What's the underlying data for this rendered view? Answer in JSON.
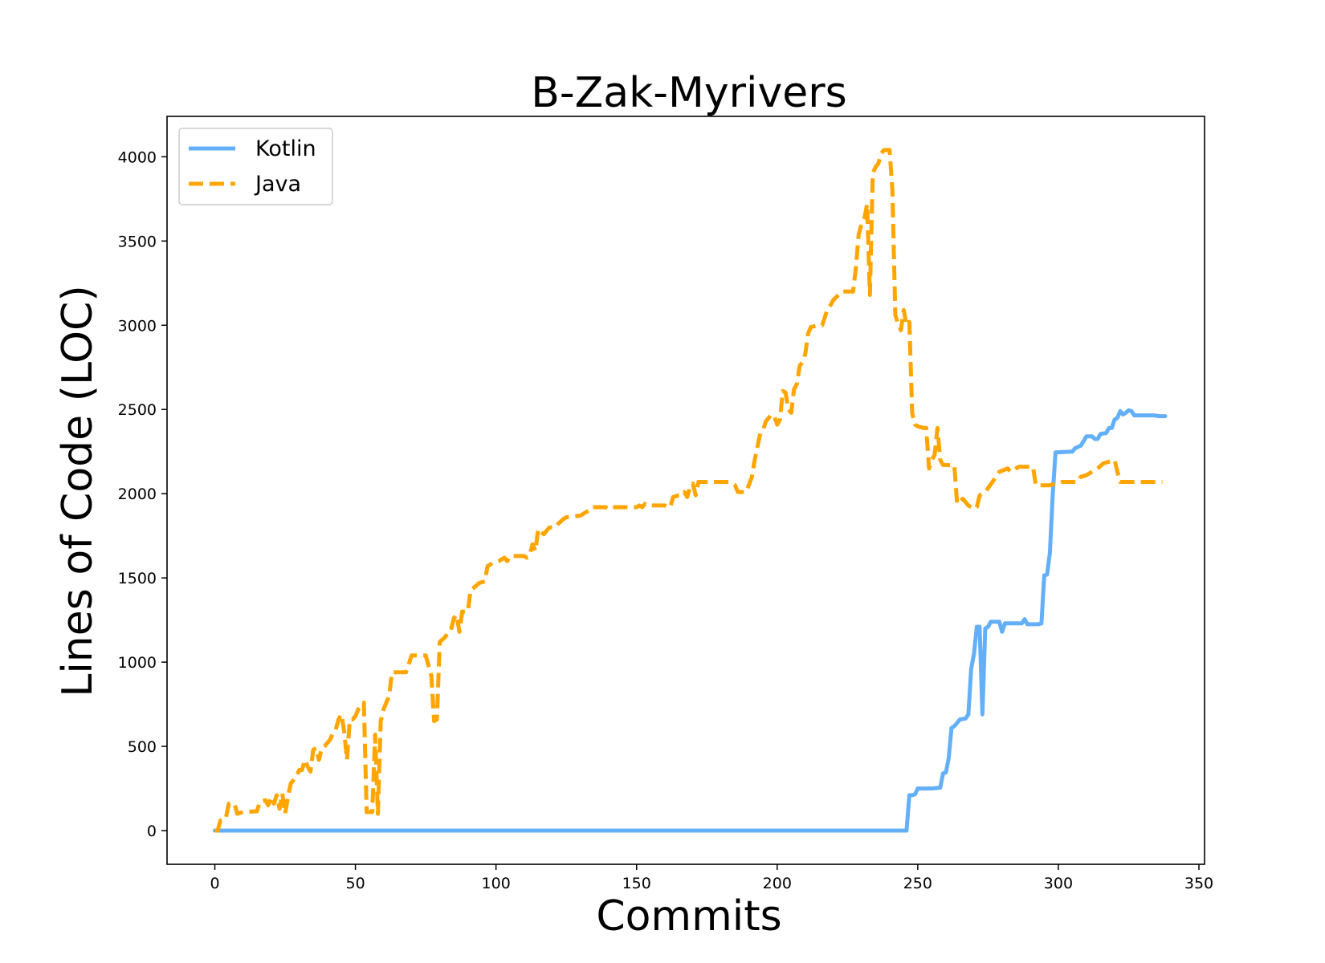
{
  "chart_data": {
    "type": "line",
    "title": "B-Zak-Myrivers",
    "xlabel": "Commits",
    "ylabel": "Lines of Code (LOC)",
    "xlim": [
      -17,
      352
    ],
    "ylim": [
      -200,
      4240
    ],
    "x_ticks": [
      0,
      50,
      100,
      150,
      200,
      250,
      300,
      350
    ],
    "y_ticks": [
      0,
      500,
      1000,
      1500,
      2000,
      2500,
      3000,
      3500,
      4000
    ],
    "grid": false,
    "legend_position": "top-left",
    "series": [
      {
        "name": "Kotlin",
        "color": "#64b0f8",
        "line_style": "solid",
        "points": [
          [
            0,
            0
          ],
          [
            246,
            0
          ],
          [
            247,
            210
          ],
          [
            248,
            210
          ],
          [
            249,
            215
          ],
          [
            250,
            250
          ],
          [
            255,
            250
          ],
          [
            258,
            255
          ],
          [
            259,
            340
          ],
          [
            260,
            345
          ],
          [
            261,
            430
          ],
          [
            262,
            610
          ],
          [
            263,
            620
          ],
          [
            264,
            640
          ],
          [
            265,
            660
          ],
          [
            267,
            665
          ],
          [
            268,
            690
          ],
          [
            269,
            960
          ],
          [
            270,
            1050
          ],
          [
            271,
            1210
          ],
          [
            272,
            1210
          ],
          [
            273,
            690
          ],
          [
            274,
            1200
          ],
          [
            275,
            1210
          ],
          [
            276,
            1240
          ],
          [
            279,
            1240
          ],
          [
            280,
            1180
          ],
          [
            281,
            1230
          ],
          [
            287,
            1230
          ],
          [
            288,
            1255
          ],
          [
            289,
            1225
          ],
          [
            293,
            1225
          ],
          [
            294,
            1230
          ],
          [
            295,
            1515
          ],
          [
            296,
            1520
          ],
          [
            297,
            1650
          ],
          [
            298,
            1990
          ],
          [
            299,
            2245
          ],
          [
            305,
            2250
          ],
          [
            306,
            2270
          ],
          [
            308,
            2285
          ],
          [
            310,
            2340
          ],
          [
            312,
            2340
          ],
          [
            313,
            2325
          ],
          [
            314,
            2325
          ],
          [
            315,
            2355
          ],
          [
            317,
            2360
          ],
          [
            318,
            2390
          ],
          [
            319,
            2390
          ],
          [
            320,
            2440
          ],
          [
            321,
            2450
          ],
          [
            322,
            2490
          ],
          [
            323,
            2470
          ],
          [
            324,
            2480
          ],
          [
            325,
            2495
          ],
          [
            326,
            2490
          ],
          [
            327,
            2465
          ],
          [
            334,
            2465
          ],
          [
            336,
            2460
          ],
          [
            338,
            2460
          ]
        ]
      },
      {
        "name": "Java",
        "color": "#ffa500",
        "line_style": "dashed",
        "points": [
          [
            0,
            0
          ],
          [
            1,
            0
          ],
          [
            2,
            60
          ],
          [
            3,
            60
          ],
          [
            4,
            80
          ],
          [
            5,
            160
          ],
          [
            7,
            160
          ],
          [
            8,
            100
          ],
          [
            10,
            110
          ],
          [
            15,
            115
          ],
          [
            16,
            170
          ],
          [
            18,
            180
          ],
          [
            19,
            150
          ],
          [
            20,
            200
          ],
          [
            21,
            160
          ],
          [
            22,
            210
          ],
          [
            23,
            130
          ],
          [
            24,
            220
          ],
          [
            25,
            100
          ],
          [
            26,
            200
          ],
          [
            27,
            280
          ],
          [
            28,
            300
          ],
          [
            29,
            320
          ],
          [
            30,
            360
          ],
          [
            31,
            360
          ],
          [
            32,
            420
          ],
          [
            33,
            380
          ],
          [
            34,
            350
          ],
          [
            35,
            480
          ],
          [
            36,
            490
          ],
          [
            37,
            420
          ],
          [
            38,
            490
          ],
          [
            39,
            500
          ],
          [
            40,
            520
          ],
          [
            41,
            540
          ],
          [
            42,
            580
          ],
          [
            43,
            600
          ],
          [
            44,
            660
          ],
          [
            45,
            690
          ],
          [
            46,
            590
          ],
          [
            47,
            420
          ],
          [
            48,
            660
          ],
          [
            49,
            660
          ],
          [
            50,
            680
          ],
          [
            51,
            720
          ],
          [
            52,
            740
          ],
          [
            53,
            760
          ],
          [
            54,
            110
          ],
          [
            56,
            110
          ],
          [
            57,
            570
          ],
          [
            58,
            100
          ],
          [
            59,
            650
          ],
          [
            60,
            720
          ],
          [
            61,
            760
          ],
          [
            62,
            800
          ],
          [
            63,
            940
          ],
          [
            68,
            940
          ],
          [
            69,
            990
          ],
          [
            70,
            1040
          ],
          [
            75,
            1040
          ],
          [
            77,
            920
          ],
          [
            78,
            650
          ],
          [
            79,
            660
          ],
          [
            80,
            1120
          ],
          [
            82,
            1150
          ],
          [
            83,
            1180
          ],
          [
            84,
            1190
          ],
          [
            85,
            1260
          ],
          [
            86,
            1280
          ],
          [
            87,
            1180
          ],
          [
            88,
            1300
          ],
          [
            90,
            1300
          ],
          [
            91,
            1430
          ],
          [
            92,
            1440
          ],
          [
            94,
            1470
          ],
          [
            96,
            1480
          ],
          [
            97,
            1570
          ],
          [
            98,
            1580
          ],
          [
            99,
            1590
          ],
          [
            101,
            1600
          ],
          [
            103,
            1620
          ],
          [
            104,
            1600
          ],
          [
            105,
            1630
          ],
          [
            110,
            1630
          ],
          [
            111,
            1620
          ],
          [
            112,
            1640
          ],
          [
            113,
            1700
          ],
          [
            114,
            1660
          ],
          [
            115,
            1790
          ],
          [
            116,
            1770
          ],
          [
            117,
            1760
          ],
          [
            118,
            1780
          ],
          [
            119,
            1800
          ],
          [
            121,
            1800
          ],
          [
            122,
            1820
          ],
          [
            124,
            1850
          ],
          [
            125,
            1860
          ],
          [
            130,
            1870
          ],
          [
            131,
            1880
          ],
          [
            133,
            1900
          ],
          [
            134,
            1920
          ],
          [
            139,
            1920
          ],
          [
            140,
            1910
          ],
          [
            141,
            1920
          ],
          [
            150,
            1920
          ],
          [
            151,
            1930
          ],
          [
            152,
            1920
          ],
          [
            153,
            1940
          ],
          [
            154,
            1930
          ],
          [
            160,
            1930
          ],
          [
            162,
            1920
          ],
          [
            163,
            1980
          ],
          [
            165,
            1990
          ],
          [
            166,
            1990
          ],
          [
            167,
            2010
          ],
          [
            168,
            1980
          ],
          [
            169,
            2040
          ],
          [
            170,
            2060
          ],
          [
            171,
            1990
          ],
          [
            172,
            2070
          ],
          [
            183,
            2070
          ],
          [
            185,
            2050
          ],
          [
            186,
            2010
          ],
          [
            189,
            2010
          ],
          [
            191,
            2100
          ],
          [
            192,
            2200
          ],
          [
            193,
            2280
          ],
          [
            194,
            2360
          ],
          [
            195,
            2380
          ],
          [
            196,
            2430
          ],
          [
            197,
            2450
          ],
          [
            198,
            2470
          ],
          [
            199,
            2460
          ],
          [
            200,
            2410
          ],
          [
            201,
            2440
          ],
          [
            202,
            2610
          ],
          [
            203,
            2600
          ],
          [
            204,
            2500
          ],
          [
            205,
            2480
          ],
          [
            206,
            2620
          ],
          [
            207,
            2650
          ],
          [
            208,
            2760
          ],
          [
            209,
            2780
          ],
          [
            210,
            2830
          ],
          [
            211,
            2950
          ],
          [
            212,
            2990
          ],
          [
            215,
            3000
          ],
          [
            216,
            3000
          ],
          [
            217,
            3050
          ],
          [
            218,
            3100
          ],
          [
            219,
            3120
          ],
          [
            220,
            3150
          ],
          [
            223,
            3200
          ],
          [
            227,
            3200
          ],
          [
            228,
            3340
          ],
          [
            229,
            3540
          ],
          [
            230,
            3600
          ],
          [
            231,
            3630
          ],
          [
            232,
            3720
          ],
          [
            233,
            3180
          ],
          [
            234,
            3900
          ],
          [
            235,
            3940
          ],
          [
            236,
            3960
          ],
          [
            237,
            4020
          ],
          [
            238,
            4040
          ],
          [
            239,
            4040
          ],
          [
            240,
            4040
          ],
          [
            241,
            3800
          ],
          [
            242,
            3060
          ],
          [
            243,
            3010
          ],
          [
            244,
            2970
          ],
          [
            245,
            3090
          ],
          [
            246,
            3000
          ],
          [
            247,
            3020
          ],
          [
            248,
            2480
          ],
          [
            249,
            2410
          ],
          [
            250,
            2400
          ],
          [
            252,
            2390
          ],
          [
            253,
            2390
          ],
          [
            254,
            2150
          ],
          [
            255,
            2200
          ],
          [
            256,
            2230
          ],
          [
            257,
            2390
          ],
          [
            258,
            2200
          ],
          [
            259,
            2170
          ],
          [
            263,
            2170
          ],
          [
            264,
            1940
          ],
          [
            266,
            1970
          ],
          [
            268,
            1930
          ],
          [
            270,
            1910
          ],
          [
            271,
            1920
          ],
          [
            272,
            1990
          ],
          [
            274,
            2010
          ],
          [
            277,
            2080
          ],
          [
            279,
            2130
          ],
          [
            282,
            2150
          ],
          [
            283,
            2130
          ],
          [
            286,
            2160
          ],
          [
            291,
            2160
          ],
          [
            292,
            2050
          ],
          [
            297,
            2050
          ],
          [
            301,
            2070
          ],
          [
            307,
            2070
          ],
          [
            308,
            2100
          ],
          [
            310,
            2110
          ],
          [
            312,
            2130
          ],
          [
            314,
            2150
          ],
          [
            316,
            2180
          ],
          [
            318,
            2190
          ],
          [
            320,
            2200
          ],
          [
            321,
            2130
          ],
          [
            322,
            2070
          ],
          [
            337,
            2070
          ]
        ]
      }
    ]
  }
}
